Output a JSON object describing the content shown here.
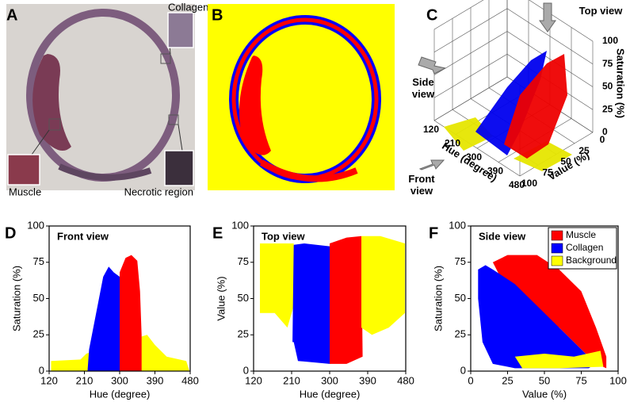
{
  "figure": {
    "panel_labels": [
      "A",
      "B",
      "C",
      "D",
      "E",
      "F"
    ],
    "panel_a": {
      "insets": [
        "Collagen",
        "Muscle",
        "Necrotic region"
      ]
    }
  },
  "chart_data": [
    {
      "type": "3d-scatter",
      "views": {
        "top": "Top view",
        "side": "Side view",
        "front": "Front view"
      },
      "xlabel": "Hue (degree)",
      "ylabel": "Value (%)",
      "zlabel": "Saturation (%)",
      "xlim": [
        120,
        480
      ],
      "xticks": [
        120,
        210,
        300,
        390,
        480
      ],
      "ylim": [
        0,
        100
      ],
      "yticks": [
        0,
        25,
        50,
        75,
        100
      ],
      "zlim": [
        0,
        100
      ],
      "zticks": [
        0,
        25,
        50,
        75,
        100
      ]
    },
    {
      "type": "region",
      "title": "Front view",
      "xlabel": "Hue (degree)",
      "ylabel": "Saturation (%)",
      "xlim": [
        120,
        480
      ],
      "xticks": [
        120,
        210,
        300,
        390,
        480
      ],
      "ylim": [
        0,
        100
      ],
      "yticks": [
        0,
        25,
        50,
        75,
        100
      ],
      "series": [
        {
          "color": "#ffff00",
          "x": [
            125,
            125,
            200,
            215,
            370,
            390,
            420,
            470,
            478
          ],
          "values": [
            0,
            7,
            8,
            12,
            25,
            18,
            10,
            7,
            0
          ]
        },
        {
          "color": "#0000ff",
          "x": [
            218,
            222,
            240,
            258,
            272,
            285,
            300,
            300
          ],
          "values": [
            0,
            15,
            40,
            65,
            72,
            68,
            65,
            0
          ]
        },
        {
          "color": "#ff0000",
          "x": [
            300,
            300,
            315,
            330,
            345,
            352,
            356,
            356
          ],
          "values": [
            0,
            68,
            78,
            80,
            76,
            55,
            25,
            0
          ]
        }
      ]
    },
    {
      "type": "region",
      "title": "Top view",
      "xlabel": "Hue (degree)",
      "ylabel": "Value (%)",
      "xlim": [
        120,
        480
      ],
      "xticks": [
        120,
        210,
        300,
        390,
        480
      ],
      "ylim": [
        0,
        100
      ],
      "yticks": [
        0,
        25,
        50,
        75,
        100
      ],
      "series": [
        {
          "color": "#ffff00",
          "x": [
            135,
            135,
            215,
            215,
            200,
            170
          ],
          "values": [
            40,
            88,
            88,
            45,
            30,
            40
          ]
        },
        {
          "color": "#0000ff",
          "x": [
            212,
            215,
            240,
            300,
            300,
            225,
            215
          ],
          "values": [
            20,
            87,
            88,
            86,
            5,
            7,
            20
          ]
        },
        {
          "color": "#ff0000",
          "x": [
            300,
            300,
            340,
            375,
            378,
            340
          ],
          "values": [
            5,
            88,
            92,
            93,
            10,
            5
          ]
        },
        {
          "color": "#ffff00",
          "x": [
            375,
            375,
            420,
            478,
            478,
            440,
            400
          ],
          "values": [
            30,
            93,
            93,
            88,
            40,
            30,
            25
          ]
        }
      ]
    },
    {
      "type": "region",
      "title": "Side view",
      "xlabel": "Value (%)",
      "ylabel": "Saturation (%)",
      "xlim": [
        0,
        100
      ],
      "xticks": [
        0,
        25,
        50,
        75,
        100
      ],
      "ylim": [
        0,
        100
      ],
      "yticks": [
        0,
        25,
        50,
        75,
        100
      ],
      "legend": "upper right",
      "series": [
        {
          "name": "Muscle",
          "color": "#ff0000",
          "x": [
            15,
            25,
            45,
            60,
            75,
            85,
            92,
            92,
            85,
            60,
            40,
            20
          ],
          "values": [
            75,
            80,
            80,
            70,
            55,
            30,
            10,
            2,
            5,
            30,
            45,
            65
          ]
        },
        {
          "name": "Collagen",
          "color": "#0000ff",
          "x": [
            5,
            10,
            15,
            30,
            60,
            80,
            85,
            80,
            30,
            15,
            8,
            5
          ],
          "values": [
            70,
            73,
            70,
            60,
            30,
            10,
            5,
            2,
            2,
            5,
            20,
            50
          ]
        },
        {
          "name": "Background",
          "color": "#ffff00",
          "x": [
            30,
            50,
            70,
            88,
            90,
            60,
            35
          ],
          "values": [
            10,
            12,
            10,
            14,
            3,
            2,
            2
          ]
        }
      ]
    }
  ]
}
